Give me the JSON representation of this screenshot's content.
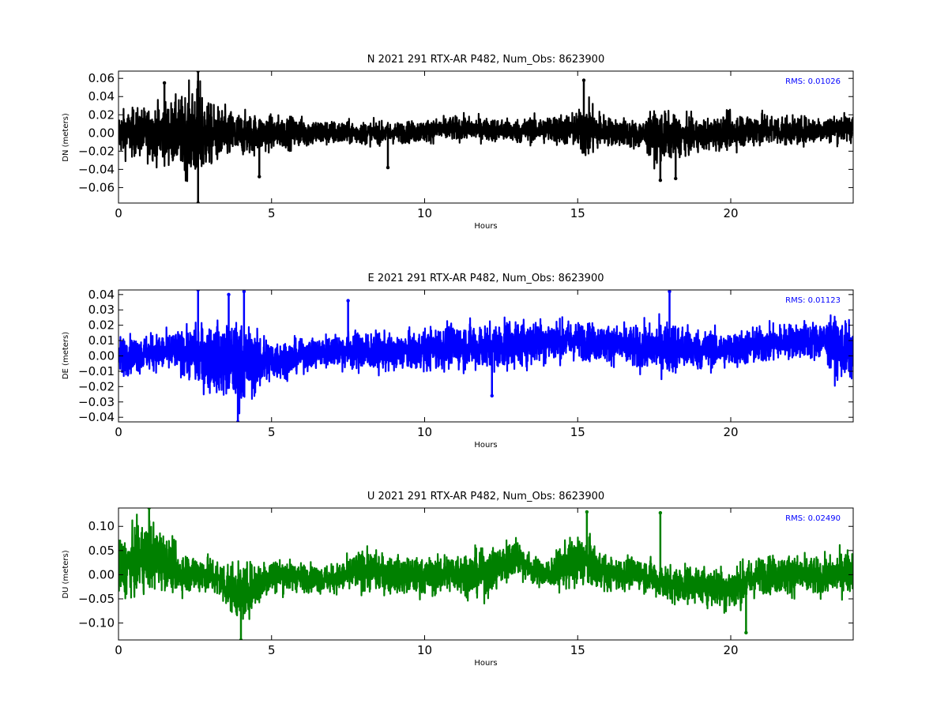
{
  "chart_data": [
    {
      "type": "line",
      "title": "N 2021 291 RTX-AR  P482, Num_Obs: 8623900",
      "xlabel": "Hours",
      "ylabel": "DN (meters)",
      "xlim": [
        0,
        24
      ],
      "ylim": [
        -0.077,
        0.068
      ],
      "xticks": [
        0,
        5,
        10,
        15,
        20
      ],
      "yticks": [
        -0.06,
        -0.04,
        -0.02,
        0.0,
        0.02,
        0.04,
        0.06
      ],
      "ytick_labels": [
        "−0.06",
        "−0.04",
        "−0.02",
        "0.00",
        "0.02",
        "0.04",
        "0.06"
      ],
      "color": "#000000",
      "annotation": "RMS:  0.01026",
      "annotation_color": "#0000ff",
      "grid": false,
      "series": [
        {
          "x": [
            0,
            1,
            2,
            2.6,
            3,
            4,
            5,
            6,
            7,
            8,
            9,
            10,
            11,
            12,
            13,
            14,
            15,
            15.2,
            16,
            17,
            17.7,
            18,
            19,
            20,
            21,
            22,
            23,
            24
          ],
          "amplitude": [
            0.025,
            0.03,
            0.04,
            0.06,
            0.035,
            0.025,
            0.02,
            0.017,
            0.014,
            0.013,
            0.012,
            0.013,
            0.014,
            0.013,
            0.014,
            0.016,
            0.02,
            0.035,
            0.016,
            0.017,
            0.03,
            0.025,
            0.018,
            0.02,
            0.02,
            0.016,
            0.015,
            0.017
          ],
          "mean": [
            0,
            0,
            0,
            0,
            -0.002,
            -0.002,
            0,
            0.001,
            0,
            0,
            0,
            0.002,
            0.005,
            0.004,
            0.002,
            0.004,
            0.003,
            0.003,
            0.002,
            -0.002,
            -0.004,
            -0.004,
            -0.003,
            0.002,
            0.004,
            0.002,
            0.004,
            0.006
          ],
          "spikes": [
            [
              2.6,
              0.068
            ],
            [
              2.6,
              -0.077
            ],
            [
              1.5,
              0.055
            ],
            [
              15.2,
              0.058
            ],
            [
              17.7,
              -0.052
            ],
            [
              4.6,
              -0.048
            ],
            [
              8.8,
              -0.038
            ],
            [
              18.2,
              -0.05
            ]
          ]
        }
      ]
    },
    {
      "type": "line",
      "title": "E 2021 291 RTX-AR  P482, Num_Obs: 8623900",
      "xlabel": "Hours",
      "ylabel": "DE (meters)",
      "xlim": [
        0,
        24
      ],
      "ylim": [
        -0.043,
        0.043
      ],
      "xticks": [
        0,
        5,
        10,
        15,
        20
      ],
      "yticks": [
        -0.04,
        -0.03,
        -0.02,
        -0.01,
        0.0,
        0.01,
        0.02,
        0.03,
        0.04
      ],
      "ytick_labels": [
        "−0.04",
        "−0.03",
        "−0.02",
        "−0.01",
        "0.00",
        "0.01",
        "0.02",
        "0.03",
        "0.04"
      ],
      "color": "#0000ff",
      "annotation": "RMS:  0.01123",
      "annotation_color": "#0000ff",
      "grid": false,
      "series": [
        {
          "x": [
            0,
            1,
            2,
            2.7,
            3.5,
            4,
            5,
            6,
            7,
            8,
            9,
            10,
            11,
            12,
            13,
            14,
            15,
            16,
            17,
            18,
            19,
            20,
            21,
            22,
            23,
            23.5,
            24
          ],
          "amplitude": [
            0.013,
            0.012,
            0.014,
            0.022,
            0.025,
            0.028,
            0.015,
            0.01,
            0.012,
            0.014,
            0.012,
            0.014,
            0.016,
            0.016,
            0.017,
            0.015,
            0.013,
            0.013,
            0.015,
            0.018,
            0.014,
            0.012,
            0.013,
            0.012,
            0.014,
            0.02,
            0.018
          ],
          "mean": [
            0,
            0.002,
            0.003,
            0,
            -0.003,
            -0.005,
            -0.003,
            0,
            0.004,
            0.003,
            0.002,
            0.004,
            0.007,
            0.006,
            0.008,
            0.01,
            0.01,
            0.008,
            0.005,
            0.006,
            0.004,
            0.004,
            0.007,
            0.01,
            0.01,
            0.005,
            0.002
          ],
          "spikes": [
            [
              2.6,
              0.043
            ],
            [
              3.9,
              -0.043
            ],
            [
              4.1,
              0.042
            ],
            [
              18,
              0.042
            ],
            [
              7.5,
              0.036
            ],
            [
              12.2,
              -0.026
            ],
            [
              3.6,
              0.04
            ]
          ]
        }
      ]
    },
    {
      "type": "line",
      "title": "U 2021 291 RTX-AR  P482, Num_Obs: 8623900",
      "xlabel": "Hours",
      "ylabel": "DU (meters)",
      "xlim": [
        0,
        24
      ],
      "ylim": [
        -0.135,
        0.138
      ],
      "xticks": [
        0,
        5,
        10,
        15,
        20
      ],
      "yticks": [
        -0.1,
        -0.05,
        0.0,
        0.05,
        0.1
      ],
      "ytick_labels": [
        "−0.10",
        "−0.05",
        "0.00",
        "0.05",
        "0.10"
      ],
      "color": "#008000",
      "annotation": "RMS:  0.02490",
      "annotation_color": "#0000ff",
      "grid": false,
      "series": [
        {
          "x": [
            0,
            1,
            1.5,
            2,
            3,
            4,
            4.5,
            5,
            6,
            7,
            8,
            9,
            10,
            11,
            12,
            13,
            13.5,
            14,
            15,
            15.5,
            16,
            17,
            18,
            19,
            20,
            21,
            22,
            23,
            24
          ],
          "amplitude": [
            0.06,
            0.08,
            0.06,
            0.045,
            0.04,
            0.06,
            0.05,
            0.04,
            0.03,
            0.03,
            0.045,
            0.04,
            0.04,
            0.045,
            0.05,
            0.045,
            0.03,
            0.03,
            0.06,
            0.05,
            0.035,
            0.035,
            0.04,
            0.04,
            0.05,
            0.04,
            0.045,
            0.04,
            0.05
          ],
          "mean": [
            0.01,
            0.04,
            0.03,
            0.005,
            0,
            -0.04,
            -0.02,
            0,
            -0.005,
            -0.01,
            0.01,
            0,
            -0.005,
            0.005,
            0.0,
            0.04,
            0.01,
            0,
            0.03,
            0.02,
            0,
            0.005,
            -0.02,
            -0.02,
            -0.03,
            0,
            0.0,
            -0.005,
            0.01
          ],
          "spikes": [
            [
              1.0,
              0.138
            ],
            [
              4.0,
              -0.135
            ],
            [
              17.7,
              0.128
            ],
            [
              15.3,
              0.13
            ],
            [
              20.5,
              -0.12
            ]
          ]
        }
      ]
    }
  ]
}
